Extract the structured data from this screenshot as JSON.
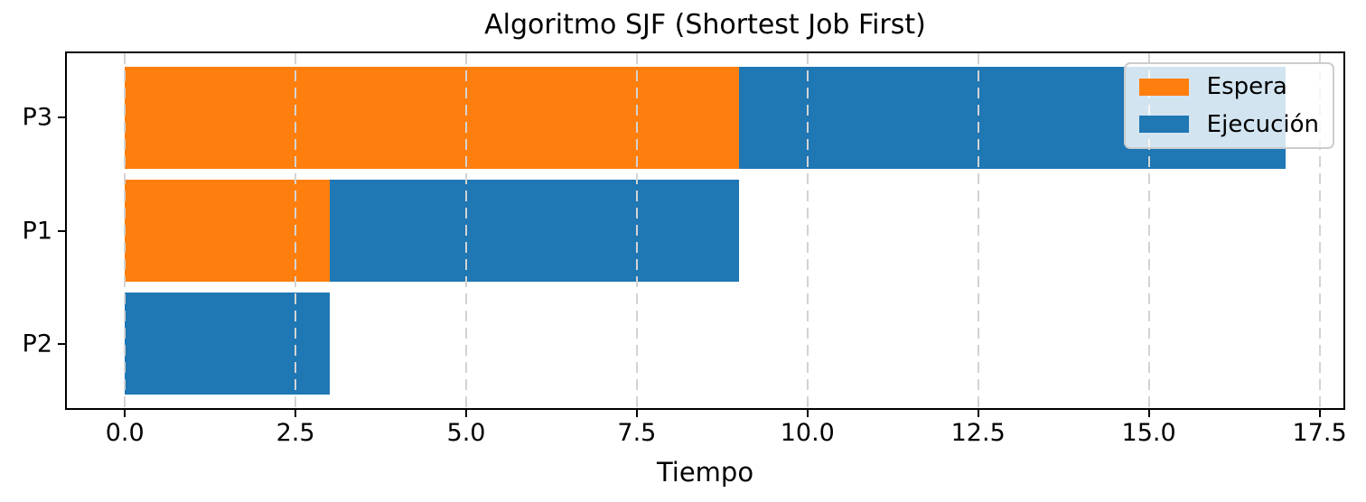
{
  "chart_data": {
    "type": "bar",
    "orientation": "horizontal",
    "stacked": true,
    "title": "Algoritmo SJF (Shortest Job First)",
    "xlabel": "Tiempo",
    "categories": [
      "P3",
      "P1",
      "P2"
    ],
    "series": [
      {
        "name": "Espera",
        "color": "#ff7f0e",
        "values": [
          9,
          3,
          0
        ]
      },
      {
        "name": "Ejecución",
        "color": "#1f77b4",
        "values": [
          8,
          6,
          3
        ]
      }
    ],
    "xlim": [
      -0.85,
      17.85
    ],
    "ylim": [
      -0.57,
      2.57
    ],
    "bar_height": 0.9,
    "xticks": [
      0,
      2.5,
      5,
      7.5,
      10,
      12.5,
      15,
      17.5
    ],
    "xtick_labels": [
      "0.0",
      "2.5",
      "5.0",
      "7.5",
      "10.0",
      "12.5",
      "15.0",
      "17.5"
    ],
    "grid": {
      "axis": "x",
      "linestyle": "dashed",
      "color": "#d3d3d3"
    },
    "legend": {
      "location": "upper-right",
      "entries": [
        "Espera",
        "Ejecución"
      ]
    },
    "colors": {
      "espera": "#ff7f0e",
      "ejecucion": "#1f77b4",
      "axis": "#000000",
      "grid": "#d3d3d3"
    }
  }
}
